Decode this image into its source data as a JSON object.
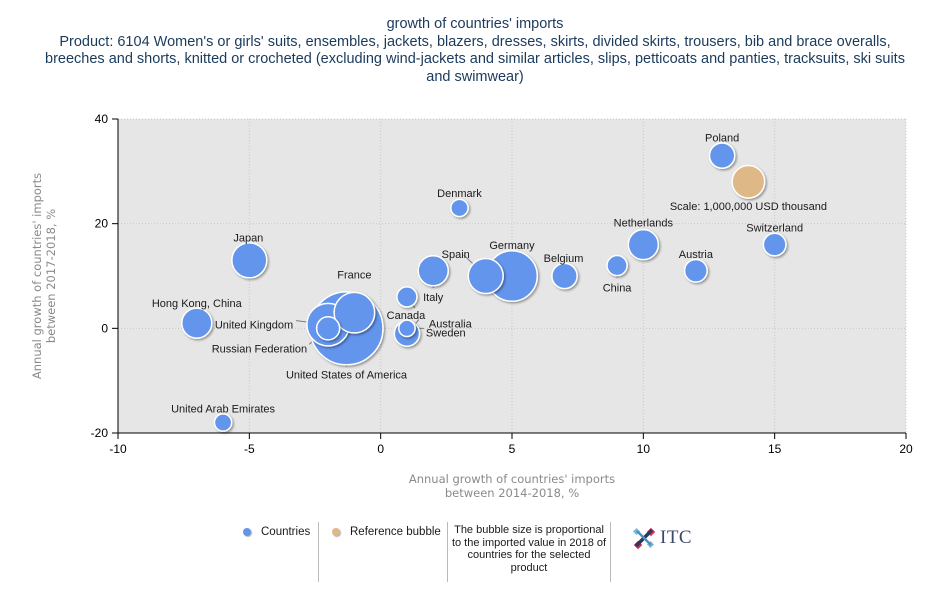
{
  "chart_data": {
    "type": "scatter",
    "subtype": "bubble",
    "title": "growth of countries' imports",
    "subtitle": "Product: 6104 Women's or girls' suits, ensembles, jackets, blazers, dresses, skirts, divided skirts, trousers, bib and brace overalls, breeches and shorts, knitted or crocheted (excluding wind-jackets and similar articles, slips, petticoats and panties, tracksuits, ski suits and swimwear)",
    "xlabel_line1": "Annual growth of countries' imports",
    "xlabel_line2": "between 2014-2018, %",
    "ylabel_line1": "Annual growth of countries' imports",
    "ylabel_line2": "between 2017-2018, %",
    "xlim": [
      -10,
      20
    ],
    "ylim": [
      -20,
      40
    ],
    "xticks": [
      -10,
      -5,
      0,
      5,
      10,
      15,
      20
    ],
    "yticks": [
      -20,
      0,
      20,
      40
    ],
    "xtick_labels": [
      "-10",
      "-5",
      "0",
      "5",
      "10",
      "15",
      "20"
    ],
    "ytick_labels": [
      "-20",
      "0",
      "20",
      "40"
    ],
    "grid": true,
    "series": [
      {
        "name": "Countries",
        "color": "#6495ED",
        "points": [
          {
            "label": "United States of America",
            "x": -1.3,
            "y": 0,
            "size": 5.0
          },
          {
            "label": "France",
            "x": -1,
            "y": 3,
            "size": 1.55
          },
          {
            "label": "United Kingdom",
            "x": -2,
            "y": 0.7,
            "size": 1.7
          },
          {
            "label": "Russian Federation",
            "x": -2,
            "y": 0,
            "size": 0.5
          },
          {
            "label": "Germany",
            "x": 5,
            "y": 10,
            "size": 2.4
          },
          {
            "label": "Spain",
            "x": 4,
            "y": 10,
            "size": 1.15
          },
          {
            "label": "Japan",
            "x": -5,
            "y": 13,
            "size": 1.15
          },
          {
            "label": "Netherlands",
            "x": 10,
            "y": 16,
            "size": 0.85
          },
          {
            "label": "Italy",
            "x": 2,
            "y": 11,
            "size": 0.85
          },
          {
            "label": "Hong Kong, China",
            "x": -7,
            "y": 1,
            "size": 0.85
          },
          {
            "label": "Belgium",
            "x": 7,
            "y": 10,
            "size": 0.6
          },
          {
            "label": "Poland",
            "x": 13,
            "y": 33,
            "size": 0.6
          },
          {
            "label": "Australia",
            "x": 1,
            "y": -1,
            "size": 0.6
          },
          {
            "label": "Austria",
            "x": 12,
            "y": 11,
            "size": 0.48
          },
          {
            "label": "Switzerland",
            "x": 15,
            "y": 16,
            "size": 0.48
          },
          {
            "label": "China",
            "x": 9,
            "y": 12,
            "size": 0.38
          },
          {
            "label": "Canada",
            "x": 1,
            "y": 6,
            "size": 0.38
          },
          {
            "label": "Sweden",
            "x": 1,
            "y": 0,
            "size": 0.25
          },
          {
            "label": "Denmark",
            "x": 3,
            "y": 23,
            "size": 0.28
          },
          {
            "label": "United Arab Emirates",
            "x": -6,
            "y": -18,
            "size": 0.28
          }
        ]
      },
      {
        "name": "Reference bubble",
        "color": "#DEB887",
        "points": [
          {
            "label": "Scale: 1,000,000 USD thousand",
            "x": 14,
            "y": 28,
            "size": 1.0
          }
        ]
      }
    ],
    "size_unit": "million USD thousand (relative to reference bubble of 1,000,000 USD thousand)",
    "legend_position": "bottom"
  },
  "legend": {
    "countries": "Countries",
    "reference": "Reference bubble",
    "note": "The bubble size is proportional to the imported value in 2018 of countries for the selected product",
    "countries_color": "#6495ED",
    "reference_color": "#DEB887"
  },
  "logo": {
    "text": "ITC"
  },
  "colors": {
    "plot_background": "#E6E6E6",
    "title": "#1a3a5c",
    "axis_title": "#8a8a8a"
  }
}
